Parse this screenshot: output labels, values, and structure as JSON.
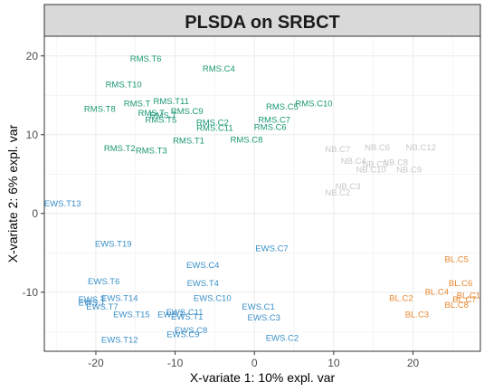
{
  "chart_data": {
    "type": "scatter",
    "title": "PLSDA on SRBCT",
    "xlabel": "X-variate 1: 10% expl. var",
    "ylabel": "X-variate 2: 6% expl. var",
    "xlim": [
      -26.5,
      28.5
    ],
    "ylim": [
      -17.5,
      22.5
    ],
    "xticks": [
      -20,
      -10,
      0,
      10,
      20
    ],
    "yticks": [
      -10,
      0,
      10,
      20
    ],
    "grid": true,
    "legend": "none",
    "series": [
      {
        "color": "#1a9873",
        "points": [
          {
            "label": "RMS.T6",
            "x": -13.7,
            "y": 19.7
          },
          {
            "label": "RMS.C4",
            "x": -4.5,
            "y": 18.4
          },
          {
            "label": "RMS.T10",
            "x": -16.5,
            "y": 16.4
          },
          {
            "label": "RMS.T11",
            "x": -10.5,
            "y": 14.3
          },
          {
            "label": "RMS.T",
            "x": -14.8,
            "y": 14.0
          },
          {
            "label": "RMS.T8",
            "x": -19.5,
            "y": 13.3
          },
          {
            "label": "RMS.C9",
            "x": -8.5,
            "y": 13.0
          },
          {
            "label": "RMS.T",
            "x": -13.0,
            "y": 12.8
          },
          {
            "label": "RMS.T",
            "x": -11.5,
            "y": 12.5
          },
          {
            "label": "RMS.T5",
            "x": -11.8,
            "y": 11.9
          },
          {
            "label": "RMS.C2",
            "x": -5.3,
            "y": 11.6
          },
          {
            "label": "RMS.C11",
            "x": -5.0,
            "y": 10.9
          },
          {
            "label": "RMS.C5",
            "x": 3.5,
            "y": 13.6
          },
          {
            "label": "RMS.C10",
            "x": 7.5,
            "y": 14.0
          },
          {
            "label": "RMS.C7",
            "x": 2.5,
            "y": 11.9
          },
          {
            "label": "RMS.C6",
            "x": 2.0,
            "y": 11.0
          },
          {
            "label": "RMS.T1",
            "x": -8.3,
            "y": 9.3
          },
          {
            "label": "RMS.C8",
            "x": -1.0,
            "y": 9.4
          },
          {
            "label": "RMS.T2",
            "x": -17.0,
            "y": 8.3
          },
          {
            "label": "RMS.T3",
            "x": -13.0,
            "y": 8.0
          }
        ]
      },
      {
        "color": "#c8c8c8",
        "points": [
          {
            "label": "NB.C7",
            "x": 10.5,
            "y": 8.2
          },
          {
            "label": "NB.C6",
            "x": 15.5,
            "y": 8.4
          },
          {
            "label": "NB.C12",
            "x": 21.0,
            "y": 8.4
          },
          {
            "label": "NB.C4",
            "x": 12.5,
            "y": 6.7
          },
          {
            "label": "NB.C5",
            "x": 15.2,
            "y": 6.3
          },
          {
            "label": "NB.C8",
            "x": 17.8,
            "y": 6.5
          },
          {
            "label": "NB.C10",
            "x": 14.7,
            "y": 5.6
          },
          {
            "label": "NB.C9",
            "x": 19.5,
            "y": 5.6
          },
          {
            "label": "NB.C3",
            "x": 11.8,
            "y": 3.5
          },
          {
            "label": "NB.C2",
            "x": 10.5,
            "y": 2.7
          }
        ]
      },
      {
        "color": "#3a8fc8",
        "points": [
          {
            "label": "EWS.T13",
            "x": -24.2,
            "y": 1.3
          },
          {
            "label": "EWS.T19",
            "x": -17.8,
            "y": -3.8
          },
          {
            "label": "EWS.C7",
            "x": 2.2,
            "y": -4.4
          },
          {
            "label": "EWS.C4",
            "x": -6.5,
            "y": -6.5
          },
          {
            "label": "EWS.T6",
            "x": -19.0,
            "y": -8.6
          },
          {
            "label": "EWS.T4",
            "x": -6.5,
            "y": -8.8
          },
          {
            "label": "EWS.T14",
            "x": -17.0,
            "y": -10.7
          },
          {
            "label": "EWS.T",
            "x": -20.5,
            "y": -10.9
          },
          {
            "label": "EWS.T",
            "x": -20.5,
            "y": -11.3
          },
          {
            "label": "EWS.T7",
            "x": -19.2,
            "y": -11.8
          },
          {
            "label": "EWS.C10",
            "x": -5.3,
            "y": -10.7
          },
          {
            "label": "EWS.C1",
            "x": 0.5,
            "y": -11.8
          },
          {
            "label": "EWS.T15",
            "x": -15.5,
            "y": -12.8
          },
          {
            "label": "EWS.C11",
            "x": -8.8,
            "y": -12.5
          },
          {
            "label": "EWS.T",
            "x": -10.5,
            "y": -12.8
          },
          {
            "label": "EWS.T1",
            "x": -8.5,
            "y": -13.1
          },
          {
            "label": "EWS.C3",
            "x": 1.2,
            "y": -13.2
          },
          {
            "label": "EWS.C8",
            "x": -8.0,
            "y": -14.8
          },
          {
            "label": "EWS.C9",
            "x": -9.0,
            "y": -15.3
          },
          {
            "label": "EWS.T12",
            "x": -17.0,
            "y": -16.0
          },
          {
            "label": "EWS.C2",
            "x": 3.5,
            "y": -15.8
          }
        ]
      },
      {
        "color": "#e8872f",
        "points": [
          {
            "label": "BL.C5",
            "x": 25.5,
            "y": -5.8
          },
          {
            "label": "BL.C6",
            "x": 26.0,
            "y": -8.8
          },
          {
            "label": "BL.C4",
            "x": 23.0,
            "y": -9.9
          },
          {
            "label": "BL.C1",
            "x": 27.0,
            "y": -10.4
          },
          {
            "label": "BL.C7",
            "x": 26.5,
            "y": -10.9
          },
          {
            "label": "BL.C2",
            "x": 18.5,
            "y": -10.7
          },
          {
            "label": "BL.C8",
            "x": 25.5,
            "y": -11.6
          },
          {
            "label": "BL.C3",
            "x": 20.5,
            "y": -12.8
          }
        ]
      }
    ]
  }
}
